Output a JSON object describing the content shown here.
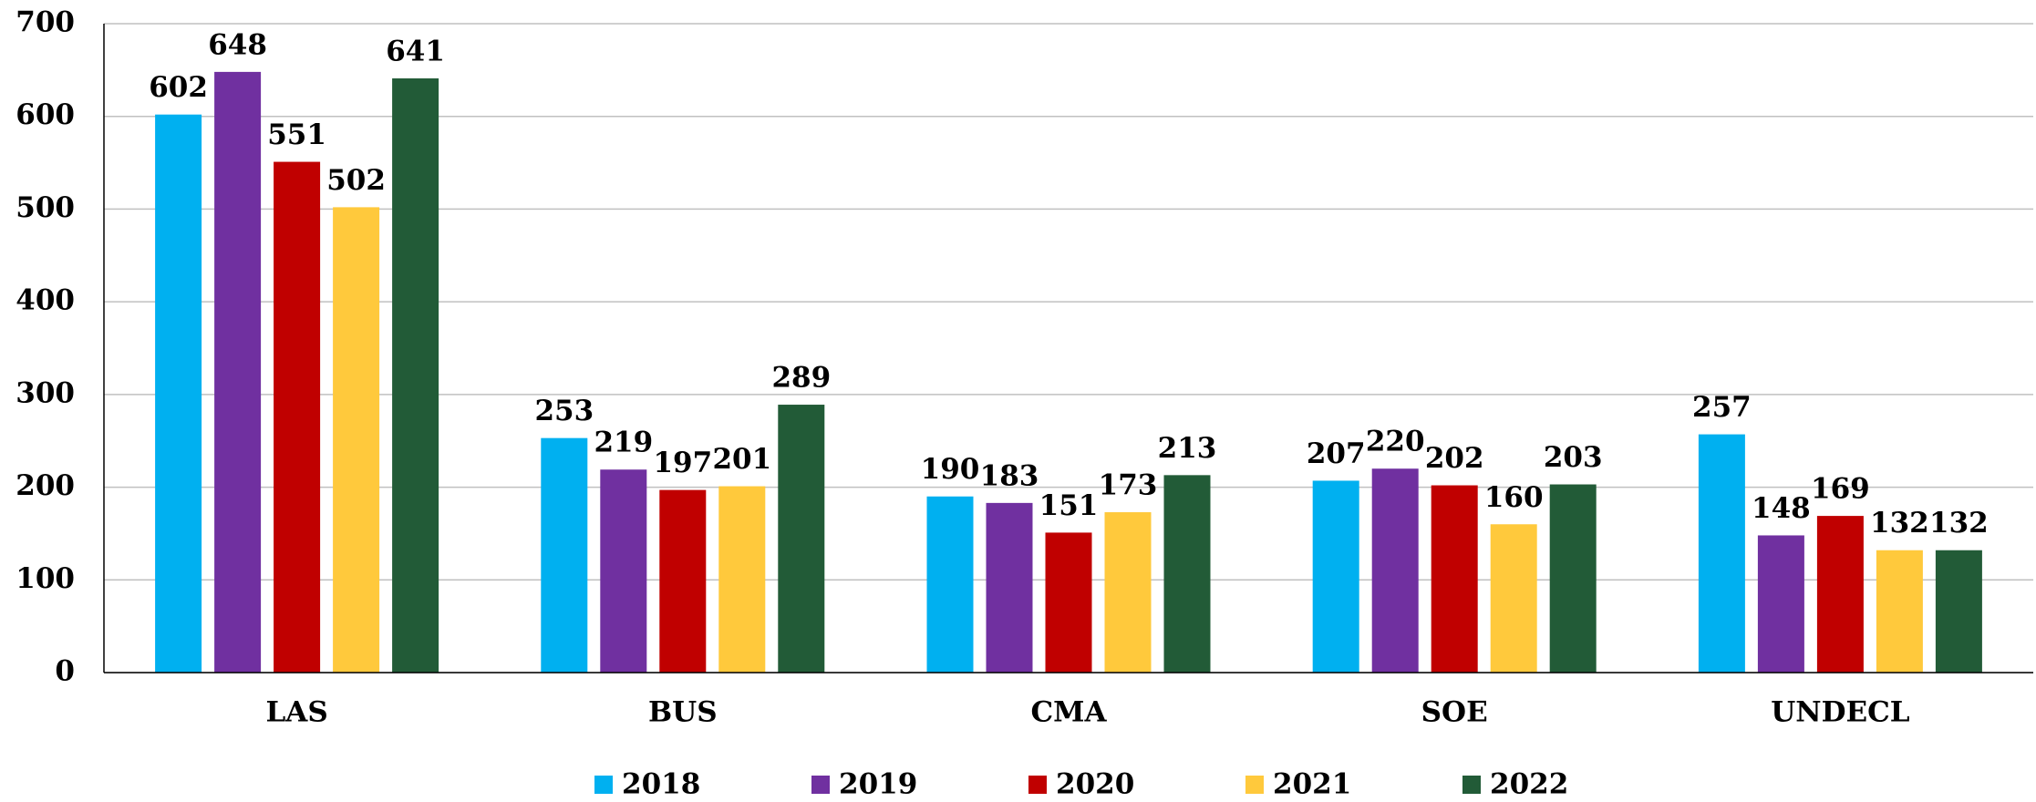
{
  "chart_data": {
    "type": "bar",
    "categories": [
      "LAS",
      "BUS",
      "CMA",
      "SOE",
      "UNDECL"
    ],
    "series": [
      {
        "name": "2018",
        "color": "#00b0f0",
        "values": [
          602,
          253,
          190,
          207,
          257
        ]
      },
      {
        "name": "2019",
        "color": "#7030a0",
        "values": [
          648,
          219,
          183,
          220,
          148
        ]
      },
      {
        "name": "2020",
        "color": "#c00000",
        "values": [
          551,
          197,
          151,
          202,
          169
        ]
      },
      {
        "name": "2021",
        "color": "#ffc93c",
        "values": [
          502,
          201,
          173,
          160,
          132
        ]
      },
      {
        "name": "2022",
        "color": "#225b37",
        "values": [
          641,
          289,
          213,
          203,
          132
        ]
      }
    ],
    "ylim": [
      0,
      700
    ],
    "yticks": [
      0,
      100,
      200,
      300,
      400,
      500,
      600,
      700
    ],
    "grid": true,
    "legend": "bottom"
  }
}
